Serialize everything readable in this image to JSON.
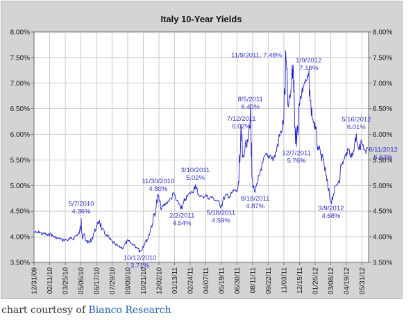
{
  "caption": {
    "prefix": "chart courtesy of ",
    "link_text": "Bianco Research"
  },
  "chart_data": {
    "type": "line",
    "title": "Italy 10-Year Yields",
    "xlabel": "",
    "ylabel": "",
    "ylim": [
      3.5,
      8.0
    ],
    "xlim": [
      "2009-12-31",
      "2012-06-18"
    ],
    "grid": true,
    "legend": "none",
    "line_color": "#1f1fd0",
    "annotation_color": "#3333cc",
    "y_ticks": [
      3.5,
      4.0,
      4.5,
      5.0,
      5.5,
      6.0,
      6.5,
      7.0,
      7.5,
      8.0
    ],
    "y_tick_labels": [
      "3.50%",
      "4.00%",
      "4.50%",
      "5.00%",
      "5.50%",
      "6.00%",
      "6.50%",
      "7.00%",
      "7.50%",
      "8.00%"
    ],
    "x_tick_labels": [
      {
        "date": "2009-12-31",
        "label": "12/31/09"
      },
      {
        "date": "2010-02-11",
        "label": "02/11/10"
      },
      {
        "date": "2010-03-25",
        "label": "03/25/10"
      },
      {
        "date": "2010-05-06",
        "label": "05/06/10"
      },
      {
        "date": "2010-06-17",
        "label": "06/17/10"
      },
      {
        "date": "2010-07-29",
        "label": "07/29/10"
      },
      {
        "date": "2010-09-09",
        "label": "09/09/10"
      },
      {
        "date": "2010-10-21",
        "label": "10/21/10"
      },
      {
        "date": "2010-12-02",
        "label": "12/02/10"
      },
      {
        "date": "2011-01-13",
        "label": "01/13/11"
      },
      {
        "date": "2011-02-24",
        "label": "02/24/11"
      },
      {
        "date": "2011-04-07",
        "label": "04/07/11"
      },
      {
        "date": "2011-05-19",
        "label": "05/19/11"
      },
      {
        "date": "2011-06-30",
        "label": "06/30/11"
      },
      {
        "date": "2011-08-11",
        "label": "08/11/11"
      },
      {
        "date": "2011-09-22",
        "label": "09/22/11"
      },
      {
        "date": "2011-11-03",
        "label": "11/03/11"
      },
      {
        "date": "2011-12-15",
        "label": "12/15/11"
      },
      {
        "date": "2012-01-26",
        "label": "01/26/12"
      },
      {
        "date": "2012-03-08",
        "label": "03/08/12"
      },
      {
        "date": "2012-04-19",
        "label": "04/19/12"
      },
      {
        "date": "2012-05-31",
        "label": "05/31/12"
      }
    ],
    "series": [
      {
        "points": [
          [
            "2009-12-31",
            4.1
          ],
          [
            "2010-01-08",
            4.07
          ],
          [
            "2010-01-15",
            4.1
          ],
          [
            "2010-01-22",
            4.05
          ],
          [
            "2010-01-29",
            4.07
          ],
          [
            "2010-02-05",
            4.02
          ],
          [
            "2010-02-12",
            4.06
          ],
          [
            "2010-02-19",
            4.02
          ],
          [
            "2010-02-26",
            3.99
          ],
          [
            "2010-03-05",
            3.97
          ],
          [
            "2010-03-12",
            3.96
          ],
          [
            "2010-03-19",
            3.93
          ],
          [
            "2010-03-26",
            3.95
          ],
          [
            "2010-04-02",
            3.93
          ],
          [
            "2010-04-09",
            3.97
          ],
          [
            "2010-04-16",
            3.96
          ],
          [
            "2010-04-23",
            4.03
          ],
          [
            "2010-04-30",
            4.05
          ],
          [
            "2010-05-03",
            4.1
          ],
          [
            "2010-05-07",
            4.36
          ],
          [
            "2010-05-11",
            3.95
          ],
          [
            "2010-05-14",
            4.05
          ],
          [
            "2010-05-21",
            3.92
          ],
          [
            "2010-05-28",
            3.88
          ],
          [
            "2010-06-04",
            3.95
          ],
          [
            "2010-06-11",
            4.1
          ],
          [
            "2010-06-18",
            4.2
          ],
          [
            "2010-06-25",
            4.32
          ],
          [
            "2010-07-02",
            4.15
          ],
          [
            "2010-07-09",
            4.05
          ],
          [
            "2010-07-16",
            4.02
          ],
          [
            "2010-07-23",
            3.95
          ],
          [
            "2010-07-30",
            3.9
          ],
          [
            "2010-08-06",
            3.85
          ],
          [
            "2010-08-13",
            3.82
          ],
          [
            "2010-08-20",
            3.8
          ],
          [
            "2010-08-27",
            3.78
          ],
          [
            "2010-09-03",
            3.87
          ],
          [
            "2010-09-10",
            3.92
          ],
          [
            "2010-09-17",
            3.88
          ],
          [
            "2010-09-24",
            3.85
          ],
          [
            "2010-10-01",
            3.8
          ],
          [
            "2010-10-08",
            3.78
          ],
          [
            "2010-10-12",
            3.71
          ],
          [
            "2010-10-19",
            3.8
          ],
          [
            "2010-10-26",
            3.9
          ],
          [
            "2010-11-02",
            3.95
          ],
          [
            "2010-11-09",
            4.15
          ],
          [
            "2010-11-16",
            4.3
          ],
          [
            "2010-11-23",
            4.55
          ],
          [
            "2010-11-30",
            4.8
          ],
          [
            "2010-12-07",
            4.55
          ],
          [
            "2010-12-14",
            4.6
          ],
          [
            "2010-12-21",
            4.65
          ],
          [
            "2010-12-28",
            4.7
          ],
          [
            "2011-01-04",
            4.75
          ],
          [
            "2011-01-11",
            4.85
          ],
          [
            "2011-01-18",
            4.7
          ],
          [
            "2011-01-25",
            4.65
          ],
          [
            "2011-02-02",
            4.54
          ],
          [
            "2011-02-09",
            4.7
          ],
          [
            "2011-02-16",
            4.78
          ],
          [
            "2011-02-23",
            4.85
          ],
          [
            "2011-03-02",
            4.88
          ],
          [
            "2011-03-10",
            5.02
          ],
          [
            "2011-03-17",
            4.82
          ],
          [
            "2011-03-24",
            4.8
          ],
          [
            "2011-03-31",
            4.77
          ],
          [
            "2011-04-07",
            4.82
          ],
          [
            "2011-04-14",
            4.75
          ],
          [
            "2011-04-21",
            4.78
          ],
          [
            "2011-04-28",
            4.75
          ],
          [
            "2011-05-05",
            4.7
          ],
          [
            "2011-05-12",
            4.7
          ],
          [
            "2011-05-18",
            4.59
          ],
          [
            "2011-05-26",
            4.75
          ],
          [
            "2011-06-02",
            4.82
          ],
          [
            "2011-06-09",
            4.78
          ],
          [
            "2011-06-16",
            4.85
          ],
          [
            "2011-06-23",
            4.92
          ],
          [
            "2011-06-30",
            4.88
          ],
          [
            "2011-07-05",
            5.05
          ],
          [
            "2011-07-12",
            6.02
          ],
          [
            "2011-07-15",
            5.55
          ],
          [
            "2011-07-21",
            5.7
          ],
          [
            "2011-07-28",
            5.9
          ],
          [
            "2011-08-05",
            6.4
          ],
          [
            "2011-08-09",
            5.2
          ],
          [
            "2011-08-12",
            5.0
          ],
          [
            "2011-08-18",
            4.87
          ],
          [
            "2011-08-25",
            5.05
          ],
          [
            "2011-09-01",
            5.3
          ],
          [
            "2011-09-08",
            5.45
          ],
          [
            "2011-09-15",
            5.6
          ],
          [
            "2011-09-22",
            5.55
          ],
          [
            "2011-09-29",
            5.6
          ],
          [
            "2011-10-06",
            5.5
          ],
          [
            "2011-10-13",
            5.65
          ],
          [
            "2011-10-20",
            5.9
          ],
          [
            "2011-10-27",
            6.05
          ],
          [
            "2011-11-03",
            6.3
          ],
          [
            "2011-11-09",
            7.48
          ],
          [
            "2011-11-14",
            6.55
          ],
          [
            "2011-11-21",
            6.75
          ],
          [
            "2011-11-28",
            7.35
          ],
          [
            "2011-12-01",
            6.7
          ],
          [
            "2011-12-07",
            5.76
          ],
          [
            "2011-12-14",
            6.6
          ],
          [
            "2011-12-21",
            6.8
          ],
          [
            "2011-12-28",
            7.0
          ],
          [
            "2012-01-04",
            7.05
          ],
          [
            "2012-01-09",
            7.16
          ],
          [
            "2012-01-13",
            6.65
          ],
          [
            "2012-01-20",
            6.3
          ],
          [
            "2012-01-27",
            6.1
          ],
          [
            "2012-02-03",
            5.75
          ],
          [
            "2012-02-10",
            5.6
          ],
          [
            "2012-02-17",
            5.5
          ],
          [
            "2012-02-24",
            5.2
          ],
          [
            "2012-03-02",
            4.9
          ],
          [
            "2012-03-09",
            4.68
          ],
          [
            "2012-03-16",
            4.85
          ],
          [
            "2012-03-23",
            5.0
          ],
          [
            "2012-03-30",
            5.1
          ],
          [
            "2012-04-06",
            5.4
          ],
          [
            "2012-04-13",
            5.5
          ],
          [
            "2012-04-20",
            5.65
          ],
          [
            "2012-04-27",
            5.7
          ],
          [
            "2012-05-04",
            5.55
          ],
          [
            "2012-05-11",
            5.8
          ],
          [
            "2012-05-16",
            6.01
          ],
          [
            "2012-05-23",
            5.7
          ],
          [
            "2012-05-30",
            5.85
          ],
          [
            "2012-06-05",
            5.7
          ],
          [
            "2012-06-11",
            5.62
          ],
          [
            "2012-06-15",
            5.75
          ]
        ]
      }
    ],
    "annotations": [
      {
        "label": "5/7/2010",
        "value": "4.36%",
        "date": "2010-05-07",
        "y": 4.36,
        "anchor": "above"
      },
      {
        "label": "10/12/2010",
        "value": "3.71%",
        "date": "2010-10-12",
        "y": 3.71,
        "anchor": "below"
      },
      {
        "label": "11/30/2010",
        "value": "4.80%",
        "date": "2010-11-30",
        "y": 4.8,
        "anchor": "above"
      },
      {
        "label": "2/2/2011",
        "value": "4.54%",
        "date": "2011-02-02",
        "y": 4.54,
        "anchor": "below"
      },
      {
        "label": "3/10/2011",
        "value": "5.02%",
        "date": "2011-03-10",
        "y": 5.02,
        "anchor": "above"
      },
      {
        "label": "5/18/2011",
        "value": "4.59%",
        "date": "2011-05-18",
        "y": 4.59,
        "anchor": "below"
      },
      {
        "label": "7/12/2011",
        "value": "6.02%",
        "date": "2011-07-12",
        "y": 6.02,
        "anchor": "above"
      },
      {
        "label": "8/5/2011",
        "value": "6.40%",
        "date": "2011-08-05",
        "y": 6.4,
        "anchor": "above"
      },
      {
        "label": "8/18/2011",
        "value": "4.87%",
        "date": "2011-08-18",
        "y": 4.87,
        "anchor": "below"
      },
      {
        "label": "11/9/2011, 7.48%",
        "value": "",
        "date": "2011-11-09",
        "y": 7.48,
        "anchor": "above-left"
      },
      {
        "label": "12/7/2011",
        "value": "5.76%",
        "date": "2011-12-07",
        "y": 5.76,
        "anchor": "below"
      },
      {
        "label": "1/9/2012",
        "value": "7.16%",
        "date": "2012-01-09",
        "y": 7.16,
        "anchor": "above"
      },
      {
        "label": "3/9/2012",
        "value": "4.68%",
        "date": "2012-03-09",
        "y": 4.68,
        "anchor": "below"
      },
      {
        "label": "5/16/2012",
        "value": "6.01%",
        "date": "2012-05-16",
        "y": 6.01,
        "anchor": "above"
      },
      {
        "label": "6/11/2012",
        "value": "5.62%",
        "date": "2012-06-11",
        "y": 5.62,
        "anchor": "right"
      }
    ]
  }
}
